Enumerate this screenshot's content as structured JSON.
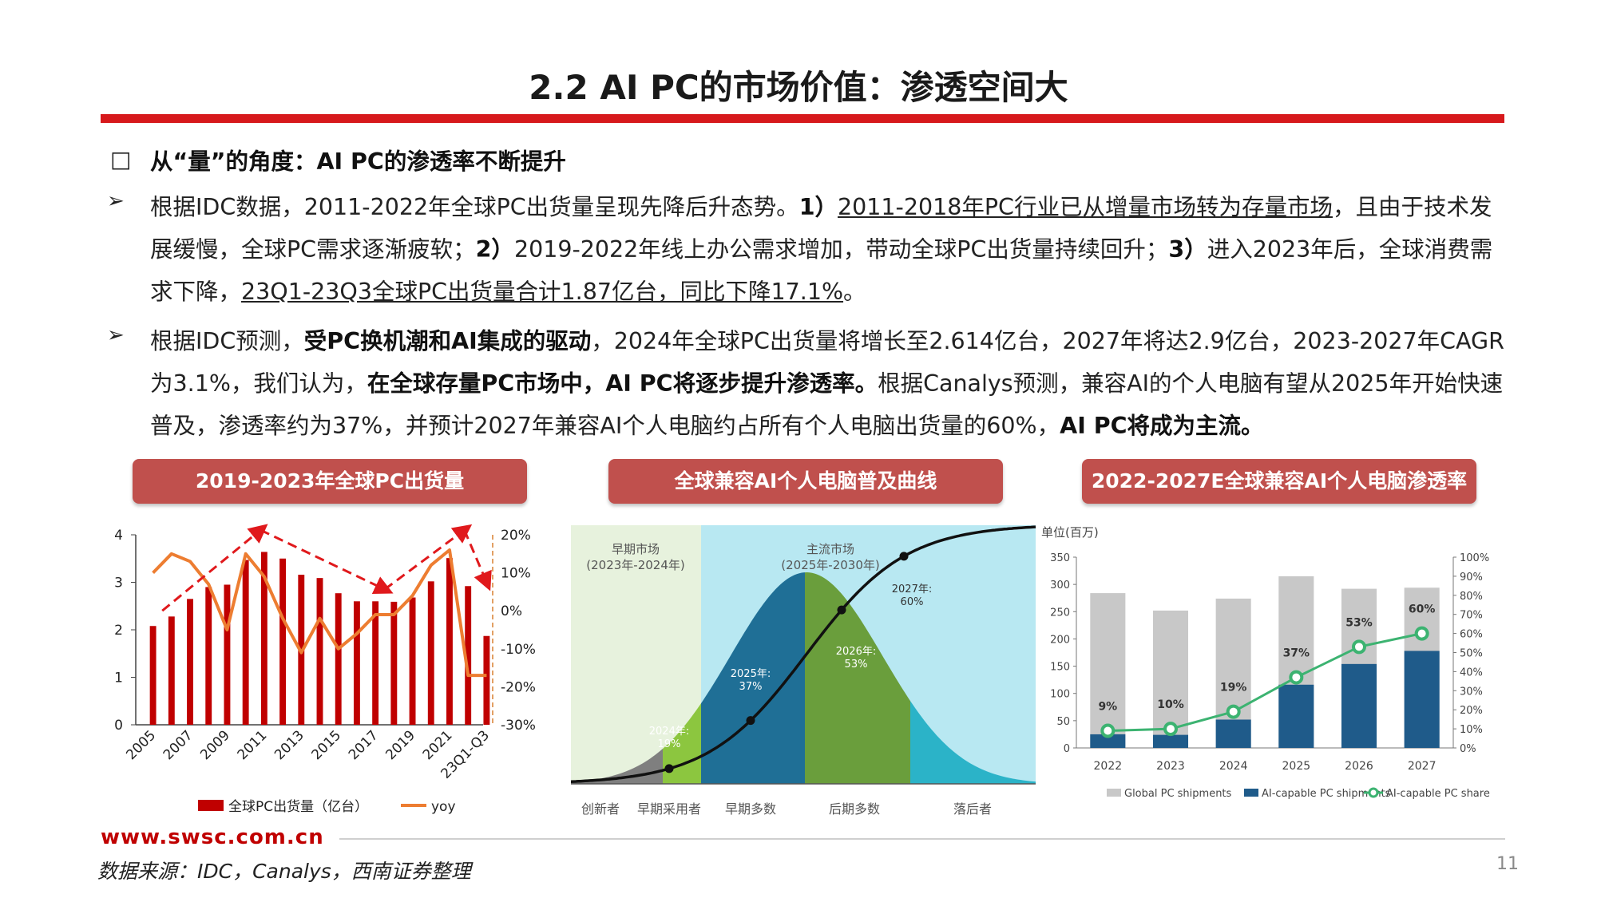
{
  "title": "2.2 AI PC的市场价值：渗透空间大",
  "section_heading": "从“量”的角度：AI PC的渗透率不断提升",
  "bullet_square": "□",
  "bullet_arrow": "➢",
  "para1": {
    "s1": "根据IDC数据，2011-2022年全球PC出货量呈现先降后升态势。",
    "n1": "1）",
    "u1": "2011-2018年PC行业已从增量市场转为存量市场",
    "s2": "，且由于技术发展缓慢，全球PC需求逐渐疲软；",
    "n2": "2）",
    "s3": "2019-2022年线上办公需求增加，带动全球PC出货量持续回升；",
    "n3": "3）",
    "s4": "进入2023年后，全球消费需求下降，",
    "u2": "23Q1-23Q3全球PC出货量合计1.87亿台，同比下降17.1%",
    "s5": "。"
  },
  "para2": {
    "s1": "根据IDC预测，",
    "b1": "受PC换机潮和AI集成的驱动",
    "s2": "，2024年全球PC出货量将增长至2.614亿台，2027年将达2.9亿台，2023-2027年CAGR为3.1%，我们认为，",
    "b2": "在全球存量PC市场中，AI PC将逐步提升渗透率。",
    "s3": "根据Canalys预测，兼容AI的个人电脑有望从2025年开始快速普及，渗透率约为37%，并预计2027年兼容AI个人电脑约占所有个人电脑出货量的60%，",
    "b3": "AI PC将成为主流。"
  },
  "panel_titles": [
    "2019-2023年全球PC出货量",
    "全球兼容AI个人电脑普及曲线",
    "2022-2027E全球兼容AI个人电脑渗透率"
  ],
  "colors": {
    "accent_red": "#d7191c",
    "pill": "#c0504d",
    "bar_red": "#c00000",
    "yoy_orange": "#ed7d31",
    "navy": "#1f5b8a",
    "green": "#3cb371",
    "gray_bar": "#c8c8c8"
  },
  "chart_data": [
    {
      "type": "bar",
      "categories": [
        "2005",
        "2006",
        "2007",
        "2008",
        "2009",
        "2010",
        "2011",
        "2012",
        "2013",
        "2014",
        "2015",
        "2016",
        "2017",
        "2018",
        "2019",
        "2020",
        "2021",
        "2022",
        "23Q1-Q3"
      ],
      "x_tick_labels": [
        "2005",
        "2007",
        "2009",
        "2011",
        "2013",
        "2015",
        "2017",
        "2019",
        "2021",
        "23Q1-Q3"
      ],
      "series": [
        {
          "name": "全球PC出货量（亿台）",
          "axis": "left",
          "values": [
            2.08,
            2.28,
            2.65,
            2.9,
            2.95,
            3.47,
            3.64,
            3.5,
            3.16,
            3.09,
            2.77,
            2.6,
            2.6,
            2.59,
            2.68,
            3.02,
            3.51,
            2.92,
            1.87
          ]
        },
        {
          "name": "yoy",
          "type": "line",
          "axis": "right",
          "values": [
            10,
            15,
            13,
            7,
            -5,
            15,
            9,
            -2,
            -11,
            -2,
            -10,
            -6,
            -1,
            -1,
            4,
            12,
            16,
            -17,
            -17
          ]
        }
      ],
      "ylim": [
        0,
        4
      ],
      "yticks": [
        "0",
        "1",
        "2",
        "3",
        "4"
      ],
      "y2lim": [
        -30,
        20
      ],
      "y2ticks": [
        "-30%",
        "-20%",
        "-10%",
        "0%",
        "10%",
        "20%"
      ],
      "trend_arrow_points": [
        [
          2005.5,
          2.3
        ],
        [
          2010.8,
          4.0
        ],
        [
          2017.5,
          2.75
        ],
        [
          2021.8,
          4.0
        ],
        [
          2023,
          2.9
        ]
      ]
    },
    {
      "type": "area",
      "stage_labels": [
        "创新者",
        "早期采用者",
        "早期多数",
        "后期多数",
        "落后者"
      ],
      "market_labels": [
        {
          "line1": "早期市场",
          "line2": "(2023年-2024年)"
        },
        {
          "line1": "主流市场",
          "line2": "(2025年-2030年)"
        }
      ],
      "points": [
        {
          "year": "2024年:",
          "value": "19%"
        },
        {
          "year": "2025年:",
          "value": "37%"
        },
        {
          "year": "2026年:",
          "value": "53%"
        },
        {
          "year": "2027年:",
          "value": "60%"
        }
      ]
    },
    {
      "type": "bar",
      "categories": [
        "2022",
        "2023",
        "2024",
        "2025",
        "2026",
        "2027"
      ],
      "unit_label": "单位(百万)",
      "series": [
        {
          "name": "Global PC shipments",
          "axis": "left",
          "values": [
            284,
            252,
            274,
            315,
            292,
            294
          ]
        },
        {
          "name": "AI-capable PC shipments",
          "axis": "left",
          "values": [
            25,
            24,
            52,
            116,
            154,
            178
          ]
        },
        {
          "name": "AI-capable PC share",
          "type": "line",
          "axis": "right",
          "values": [
            9,
            10,
            19,
            37,
            53,
            60
          ],
          "labels": [
            "9%",
            "10%",
            "19%",
            "37%",
            "53%",
            "60%"
          ]
        }
      ],
      "ylim": [
        0,
        350
      ],
      "yticks": [
        "0",
        "50",
        "100",
        "150",
        "200",
        "250",
        "300",
        "350"
      ],
      "y2lim": [
        0,
        100
      ],
      "y2ticks": [
        "0%",
        "10%",
        "20%",
        "30%",
        "40%",
        "50%",
        "60%",
        "70%",
        "80%",
        "90%",
        "100%"
      ]
    }
  ],
  "footer": {
    "url": "www.swsc.com.cn",
    "source": "数据来源：IDC，Canalys，西南证券整理",
    "page": "11"
  }
}
